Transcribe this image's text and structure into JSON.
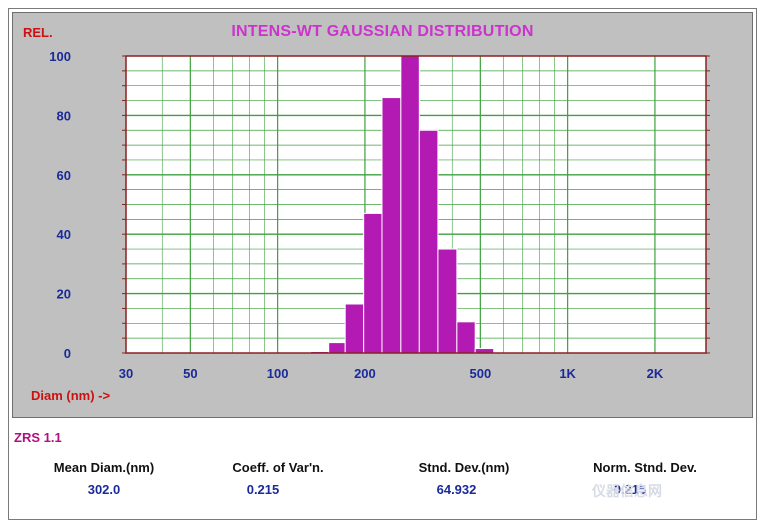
{
  "chart_data": {
    "type": "bar",
    "title": "INTENS-WT GAUSSIAN DISTRIBUTION",
    "ylabel": "REL.",
    "xlabel": "Diam (nm) ->",
    "x_scale": "log",
    "xlim": [
      30,
      3000
    ],
    "ylim": [
      0,
      100
    ],
    "y_ticks": [
      "0",
      "20",
      "40",
      "60",
      "80",
      "100"
    ],
    "x_ticks": [
      {
        "value": 30,
        "label": "30"
      },
      {
        "value": 50,
        "label": "50"
      },
      {
        "value": 100,
        "label": "100"
      },
      {
        "value": 200,
        "label": "200"
      },
      {
        "value": 500,
        "label": "500"
      },
      {
        "value": 1000,
        "label": "1K"
      },
      {
        "value": 2000,
        "label": "2K"
      }
    ],
    "bins": [
      {
        "lo": 130,
        "hi": 150,
        "value": 0.5
      },
      {
        "lo": 150,
        "hi": 171,
        "value": 3.5
      },
      {
        "lo": 171,
        "hi": 198,
        "value": 16.5
      },
      {
        "lo": 198,
        "hi": 229,
        "value": 47
      },
      {
        "lo": 229,
        "hi": 266,
        "value": 86
      },
      {
        "lo": 266,
        "hi": 308,
        "value": 100
      },
      {
        "lo": 308,
        "hi": 357,
        "value": 75
      },
      {
        "lo": 357,
        "hi": 415,
        "value": 35
      },
      {
        "lo": 415,
        "hi": 480,
        "value": 10.5
      },
      {
        "lo": 480,
        "hi": 556,
        "value": 1.5
      }
    ],
    "grid": true,
    "colors": {
      "bar": "#b31ab3",
      "bar_edge": "#ffffff",
      "grid": "#3fa03f",
      "plot_bg": "#ffffff",
      "panel_bg": "#c0c0c0",
      "plot_border": "#8b2020",
      "tick_label": "#1a2a99",
      "title": "#cc33cc"
    }
  },
  "footer": {
    "program": "ZRS 1.1",
    "stats": [
      {
        "label": "Mean Diam.(nm)",
        "value": "302.0"
      },
      {
        "label": "Coeff. of Var'n.",
        "value": "0.215"
      },
      {
        "label": "Stnd. Dev.(nm)",
        "value": "64.932"
      },
      {
        "label": "Norm. Stnd. Dev.",
        "value": "0.215"
      }
    ]
  },
  "watermark": "仪器信息网"
}
